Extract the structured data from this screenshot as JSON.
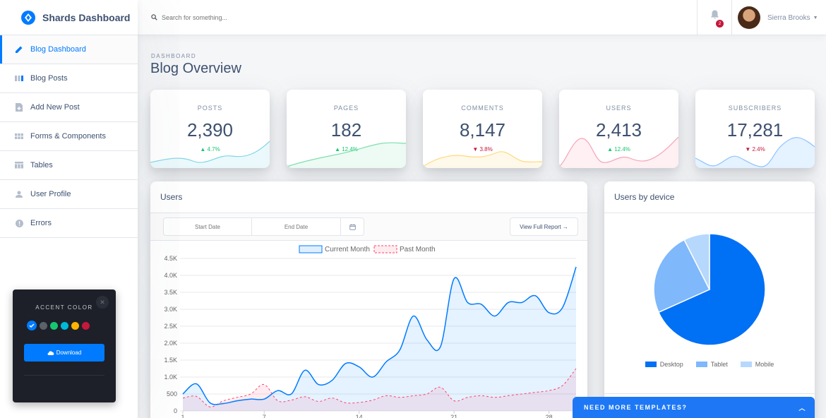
{
  "brand": {
    "title": "Shards Dashboard"
  },
  "sidebar": {
    "items": [
      {
        "label": "Blog Dashboard",
        "icon": "pencil-icon"
      },
      {
        "label": "Blog Posts",
        "icon": "columns-icon"
      },
      {
        "label": "Add New Post",
        "icon": "note-add-icon"
      },
      {
        "label": "Forms & Components",
        "icon": "view-module-icon"
      },
      {
        "label": "Tables",
        "icon": "table-icon"
      },
      {
        "label": "User Profile",
        "icon": "person-icon"
      },
      {
        "label": "Errors",
        "icon": "error-icon"
      }
    ]
  },
  "topbar": {
    "search_placeholder": "Search for something...",
    "notification_count": "2",
    "user_name": "Sierra Brooks"
  },
  "header": {
    "subtitle": "DASHBOARD",
    "title": "Blog Overview"
  },
  "stats": [
    {
      "label": "POSTS",
      "value": "2,390",
      "change": "4.7%",
      "direction": "up"
    },
    {
      "label": "PAGES",
      "value": "182",
      "change": "12.4%",
      "direction": "up"
    },
    {
      "label": "COMMENTS",
      "value": "8,147",
      "change": "3.8%",
      "direction": "down"
    },
    {
      "label": "USERS",
      "value": "2,413",
      "change": "12.4%",
      "direction": "up"
    },
    {
      "label": "SUBSCRIBERS",
      "value": "17,281",
      "change": "2.4%",
      "direction": "down"
    }
  ],
  "users_card": {
    "title": "Users",
    "start_date_placeholder": "Start Date",
    "end_date_placeholder": "End Date",
    "report_button": "View Full Report →"
  },
  "device_card": {
    "title": "Users by device"
  },
  "accent_panel": {
    "title": "ACCENT COLOR",
    "download_label": "Download",
    "colors": [
      "#007bff",
      "#5a6169",
      "#17c671",
      "#00b8d8",
      "#ffb400",
      "#c4183c"
    ]
  },
  "templates_bar": {
    "label": "NEED MORE TEMPLATES?"
  },
  "colors": {
    "accent": "#007bff",
    "success": "#17c671",
    "danger": "#c4183c"
  },
  "chart_data": [
    {
      "type": "line",
      "title": "Users",
      "legend": [
        "Current Month",
        "Past Month"
      ],
      "x": [
        1,
        2,
        3,
        4,
        5,
        6,
        7,
        8,
        9,
        10,
        11,
        12,
        13,
        14,
        15,
        16,
        17,
        18,
        19,
        20,
        21,
        22,
        23,
        24,
        25,
        26,
        27,
        28,
        29,
        30
      ],
      "x_ticks": [
        "1",
        "7",
        "14",
        "21",
        "28"
      ],
      "y_ticks": [
        "0",
        "500",
        "1.0K",
        "1.5K",
        "2.0K",
        "2.5K",
        "3.0K",
        "3.5K",
        "4.0K",
        "4.5K"
      ],
      "ylim": [
        0,
        4500
      ],
      "series": [
        {
          "name": "Current Month",
          "color": "#007bff",
          "values": [
            500,
            800,
            240,
            220,
            300,
            350,
            350,
            600,
            500,
            1200,
            780,
            900,
            1400,
            1300,
            1000,
            1450,
            1800,
            2800,
            2100,
            1900,
            3900,
            3200,
            3150,
            2800,
            3200,
            3200,
            3400,
            2900,
            3050,
            4250
          ]
        },
        {
          "name": "Past Month",
          "color": "#ff4169",
          "values": [
            380,
            430,
            120,
            300,
            400,
            500,
            780,
            300,
            320,
            420,
            280,
            380,
            240,
            250,
            320,
            450,
            400,
            450,
            500,
            700,
            300,
            400,
            450,
            400,
            450,
            500,
            550,
            600,
            750,
            1250
          ]
        }
      ]
    },
    {
      "type": "pie",
      "title": "Users by device",
      "categories": [
        "Desktop",
        "Tablet",
        "Mobile"
      ],
      "values": [
        68.3,
        24.2,
        7.5
      ],
      "colors": [
        "#0070f5",
        "#7fb8fb",
        "#b6d8fd"
      ]
    }
  ]
}
